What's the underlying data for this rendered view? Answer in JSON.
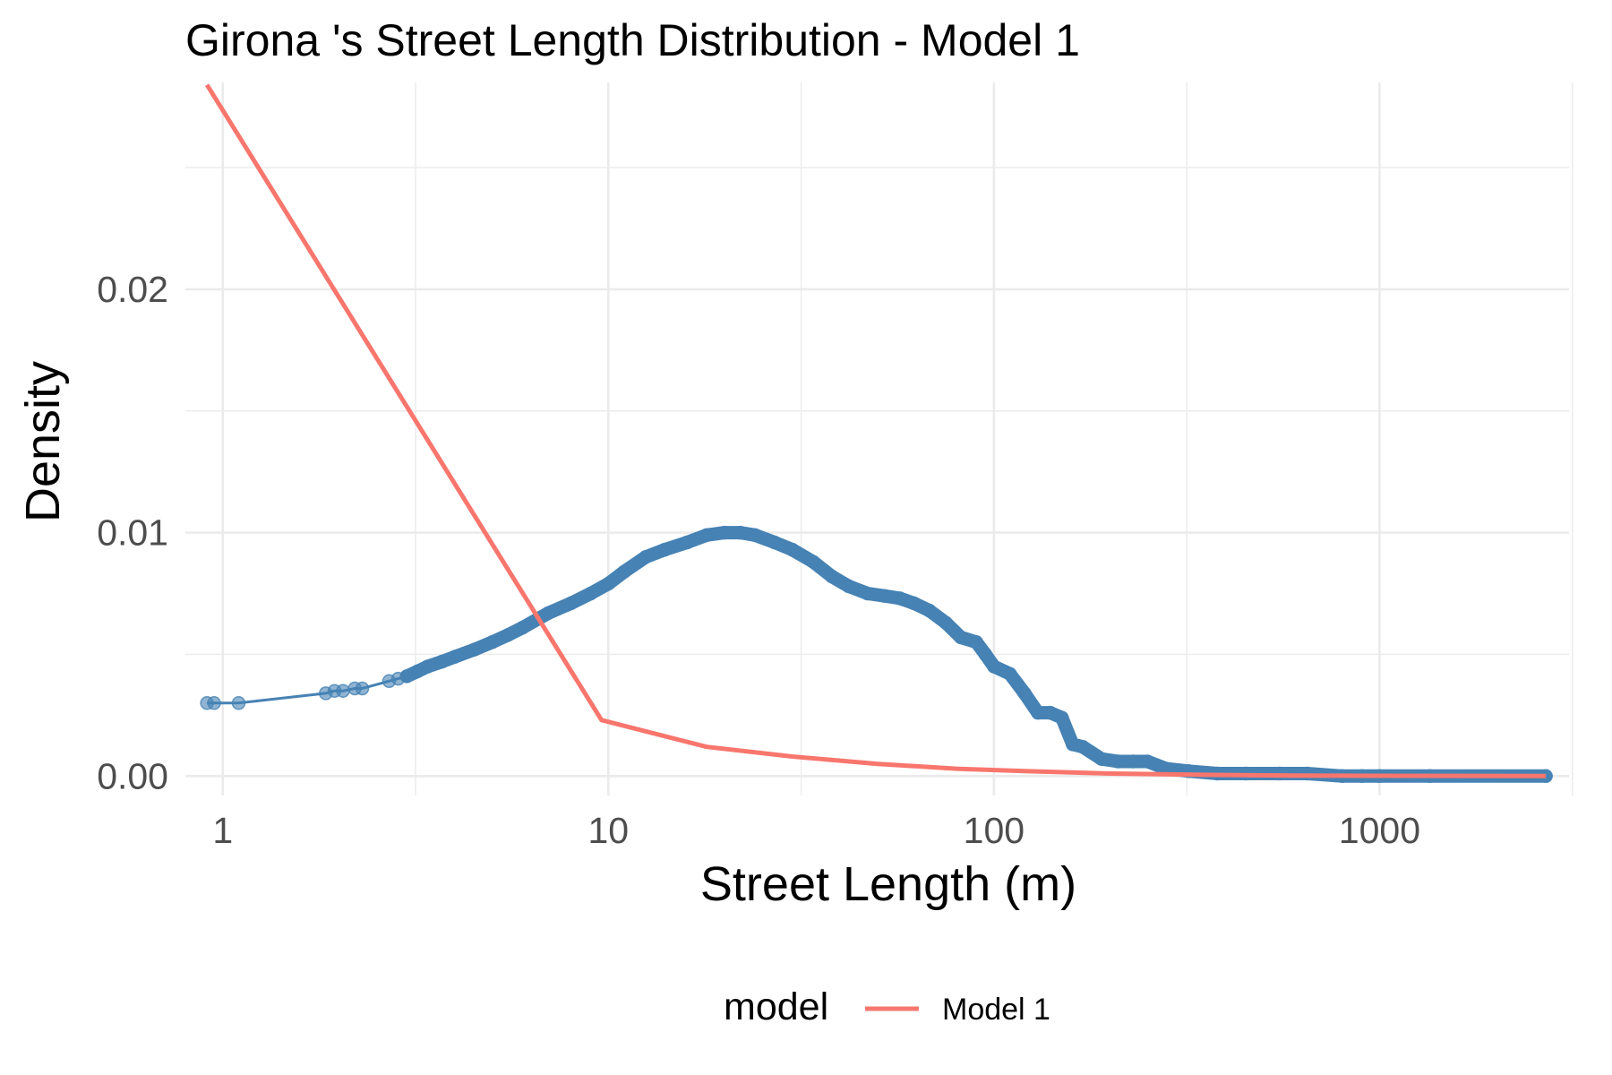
{
  "chart_data": {
    "type": "line",
    "title": "Girona 's Street Length Distribution - Model 1",
    "xlabel": "Street Length (m)",
    "ylabel": "Density",
    "x_scale": "log10",
    "xlim": [
      0.8,
      3100
    ],
    "ylim": [
      -0.0008,
      0.0285
    ],
    "x_ticks": [
      1,
      10,
      100,
      1000
    ],
    "x_tick_labels": [
      "1",
      "10",
      "100",
      "1000"
    ],
    "y_ticks": [
      0,
      0.01,
      0.02
    ],
    "y_tick_labels": [
      "0.00",
      "0.01",
      "0.02"
    ],
    "grid": true,
    "legend": {
      "title": "model",
      "position": "bottom",
      "entries": [
        "Model 1"
      ]
    },
    "series": [
      {
        "kind": "empirical-points",
        "color": "#4682b4",
        "x": [
          0.91,
          0.95,
          1.1,
          1.85,
          1.95,
          2.05,
          2.2,
          2.3,
          2.7,
          2.85,
          3.0,
          3.2,
          3.4,
          3.7,
          4.0,
          4.5,
          5.0,
          5.5,
          6.0,
          7.0,
          8.0,
          9.0,
          10.0,
          11.0,
          12.5,
          14.0,
          16.0,
          18.0,
          20.0,
          22.0,
          24.0,
          27.0,
          30.0,
          34.0,
          38.0,
          42.0,
          47.0,
          52.0,
          57.0,
          62.0,
          68.0,
          75.0,
          82.0,
          90.0,
          95.0,
          100.0,
          110.0,
          120.0,
          130.0,
          140.0,
          150.0,
          160.0,
          170.0,
          190.0,
          210.0,
          230.0,
          250.0,
          280.0,
          320.0,
          380.0,
          450.0,
          550.0,
          650.0,
          800.0,
          900.0,
          1000.0,
          1350.0,
          2700.0
        ],
        "y": [
          0.003,
          0.003,
          0.003,
          0.0034,
          0.0035,
          0.0035,
          0.0036,
          0.0036,
          0.0039,
          0.004,
          0.0041,
          0.0043,
          0.0045,
          0.0047,
          0.0049,
          0.0052,
          0.0055,
          0.0058,
          0.0061,
          0.0067,
          0.0071,
          0.0075,
          0.0079,
          0.0084,
          0.009,
          0.0093,
          0.0096,
          0.0099,
          0.01,
          0.01,
          0.0099,
          0.0096,
          0.0093,
          0.0088,
          0.0082,
          0.0078,
          0.0075,
          0.0074,
          0.0073,
          0.0071,
          0.0068,
          0.0063,
          0.0057,
          0.0055,
          0.005,
          0.0045,
          0.0042,
          0.0034,
          0.0026,
          0.0026,
          0.0024,
          0.0013,
          0.0012,
          0.0007,
          0.0006,
          0.0006,
          0.0006,
          0.0003,
          0.0002,
          0.0001,
          0.0001,
          0.0001,
          0.0001,
          0.0,
          0.0,
          0.0,
          0.0,
          0.0
        ]
      },
      {
        "name": "Model 1",
        "kind": "model-line",
        "color": "#f8766d",
        "x": [
          0.91,
          9.6,
          18.0,
          30.0,
          50.0,
          80.0,
          120.0,
          200.0,
          350.0,
          600.0,
          1000.0,
          2700.0
        ],
        "y": [
          0.0284,
          0.0023,
          0.0012,
          0.0008,
          0.0005,
          0.0003,
          0.0002,
          0.0001,
          5e-05,
          2e-05,
          1e-05,
          0.0
        ]
      }
    ]
  }
}
